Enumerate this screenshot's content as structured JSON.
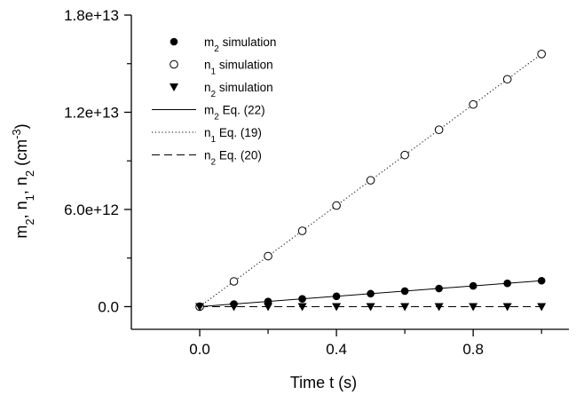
{
  "chart_data": {
    "type": "scatter",
    "xlabel": "Time t (s)",
    "ylabel": "m2, n1, n2 (cm-3)",
    "ylabel_parts": [
      {
        "text": "m",
        "style": "normal"
      },
      {
        "text": "2",
        "style": "sub"
      },
      {
        "text": ", n",
        "style": "normal"
      },
      {
        "text": "1",
        "style": "sub"
      },
      {
        "text": ", n",
        "style": "normal"
      },
      {
        "text": "2",
        "style": "sub"
      },
      {
        "text": " (cm",
        "style": "normal"
      },
      {
        "text": "-3",
        "style": "sup"
      },
      {
        "text": ")",
        "style": "normal"
      }
    ],
    "xlim": [
      -0.2,
      1.08
    ],
    "ylim": [
      -1400000000000.0,
      18000000000000.0
    ],
    "x_ticks": [
      0.0,
      0.4,
      0.8
    ],
    "x_tick_labels": [
      "0.0",
      "0.4",
      "0.8"
    ],
    "x_minor_ticks": [
      0.2,
      0.6,
      1.0
    ],
    "y_ticks": [
      0,
      6000000000000.0,
      12000000000000.0,
      18000000000000.0
    ],
    "y_tick_labels": [
      "0.0",
      "6.0e+12",
      "1.2e+13",
      "1.8e+13"
    ],
    "y_minor_ticks": [
      3000000000000.0,
      9000000000000.0,
      15000000000000.0
    ],
    "grid": false,
    "legend_position": "top-left",
    "series": [
      {
        "name": "m2 simulation",
        "name_parts": [
          {
            "text": "m",
            "style": "normal"
          },
          {
            "text": "2",
            "style": "sub"
          },
          {
            "text": " simulation",
            "style": "normal"
          }
        ],
        "kind": "markers",
        "marker": "filled-circle",
        "x": [
          0.0,
          0.1,
          0.2,
          0.3,
          0.4,
          0.5,
          0.6,
          0.7,
          0.8,
          0.9,
          1.0
        ],
        "y": [
          0,
          160000000000.0,
          320000000000.0,
          480000000000.0,
          640000000000.0,
          800000000000.0,
          960000000000.0,
          1120000000000.0,
          1280000000000.0,
          1440000000000.0,
          1600000000000.0
        ]
      },
      {
        "name": "n1 simulation",
        "name_parts": [
          {
            "text": "n",
            "style": "normal"
          },
          {
            "text": "1",
            "style": "sub"
          },
          {
            "text": " simulation",
            "style": "normal"
          }
        ],
        "kind": "markers",
        "marker": "open-circle",
        "x": [
          0.0,
          0.1,
          0.2,
          0.3,
          0.4,
          0.5,
          0.6,
          0.7,
          0.8,
          0.9,
          1.0
        ],
        "y": [
          0,
          1560000000000.0,
          3120000000000.0,
          4680000000000.0,
          6240000000000.0,
          7800000000000.0,
          9360000000000.0,
          10920000000000.0,
          12480000000000.0,
          14040000000000.0,
          15600000000000.0
        ]
      },
      {
        "name": "n2 simulation",
        "name_parts": [
          {
            "text": "n",
            "style": "normal"
          },
          {
            "text": "2",
            "style": "sub"
          },
          {
            "text": " simulation",
            "style": "normal"
          }
        ],
        "kind": "markers",
        "marker": "filled-triangle-down",
        "x": [
          0.0,
          0.1,
          0.2,
          0.3,
          0.4,
          0.5,
          0.6,
          0.7,
          0.8,
          0.9,
          1.0
        ],
        "y": [
          0,
          0,
          0,
          0,
          0,
          0,
          0,
          0,
          0,
          0,
          0
        ]
      },
      {
        "name": "m2 Eq. (22)",
        "name_parts": [
          {
            "text": "m",
            "style": "normal"
          },
          {
            "text": "2",
            "style": "sub"
          },
          {
            "text": " Eq. (22)",
            "style": "normal"
          }
        ],
        "kind": "line",
        "dash": "solid",
        "x": [
          0.0,
          1.0
        ],
        "y": [
          0,
          1600000000000.0
        ]
      },
      {
        "name": "n1 Eq. (19)",
        "name_parts": [
          {
            "text": "n",
            "style": "normal"
          },
          {
            "text": "1",
            "style": "sub"
          },
          {
            "text": " Eq. (19)",
            "style": "normal"
          }
        ],
        "kind": "line",
        "dash": "dotted",
        "x": [
          0.0,
          1.0
        ],
        "y": [
          0,
          15600000000000.0
        ]
      },
      {
        "name": "n2 Eq. (20)",
        "name_parts": [
          {
            "text": "n",
            "style": "normal"
          },
          {
            "text": "2",
            "style": "sub"
          },
          {
            "text": " Eq. (20)",
            "style": "normal"
          }
        ],
        "kind": "line",
        "dash": "dashed",
        "x": [
          0.0,
          1.0
        ],
        "y": [
          0,
          0
        ]
      }
    ]
  }
}
